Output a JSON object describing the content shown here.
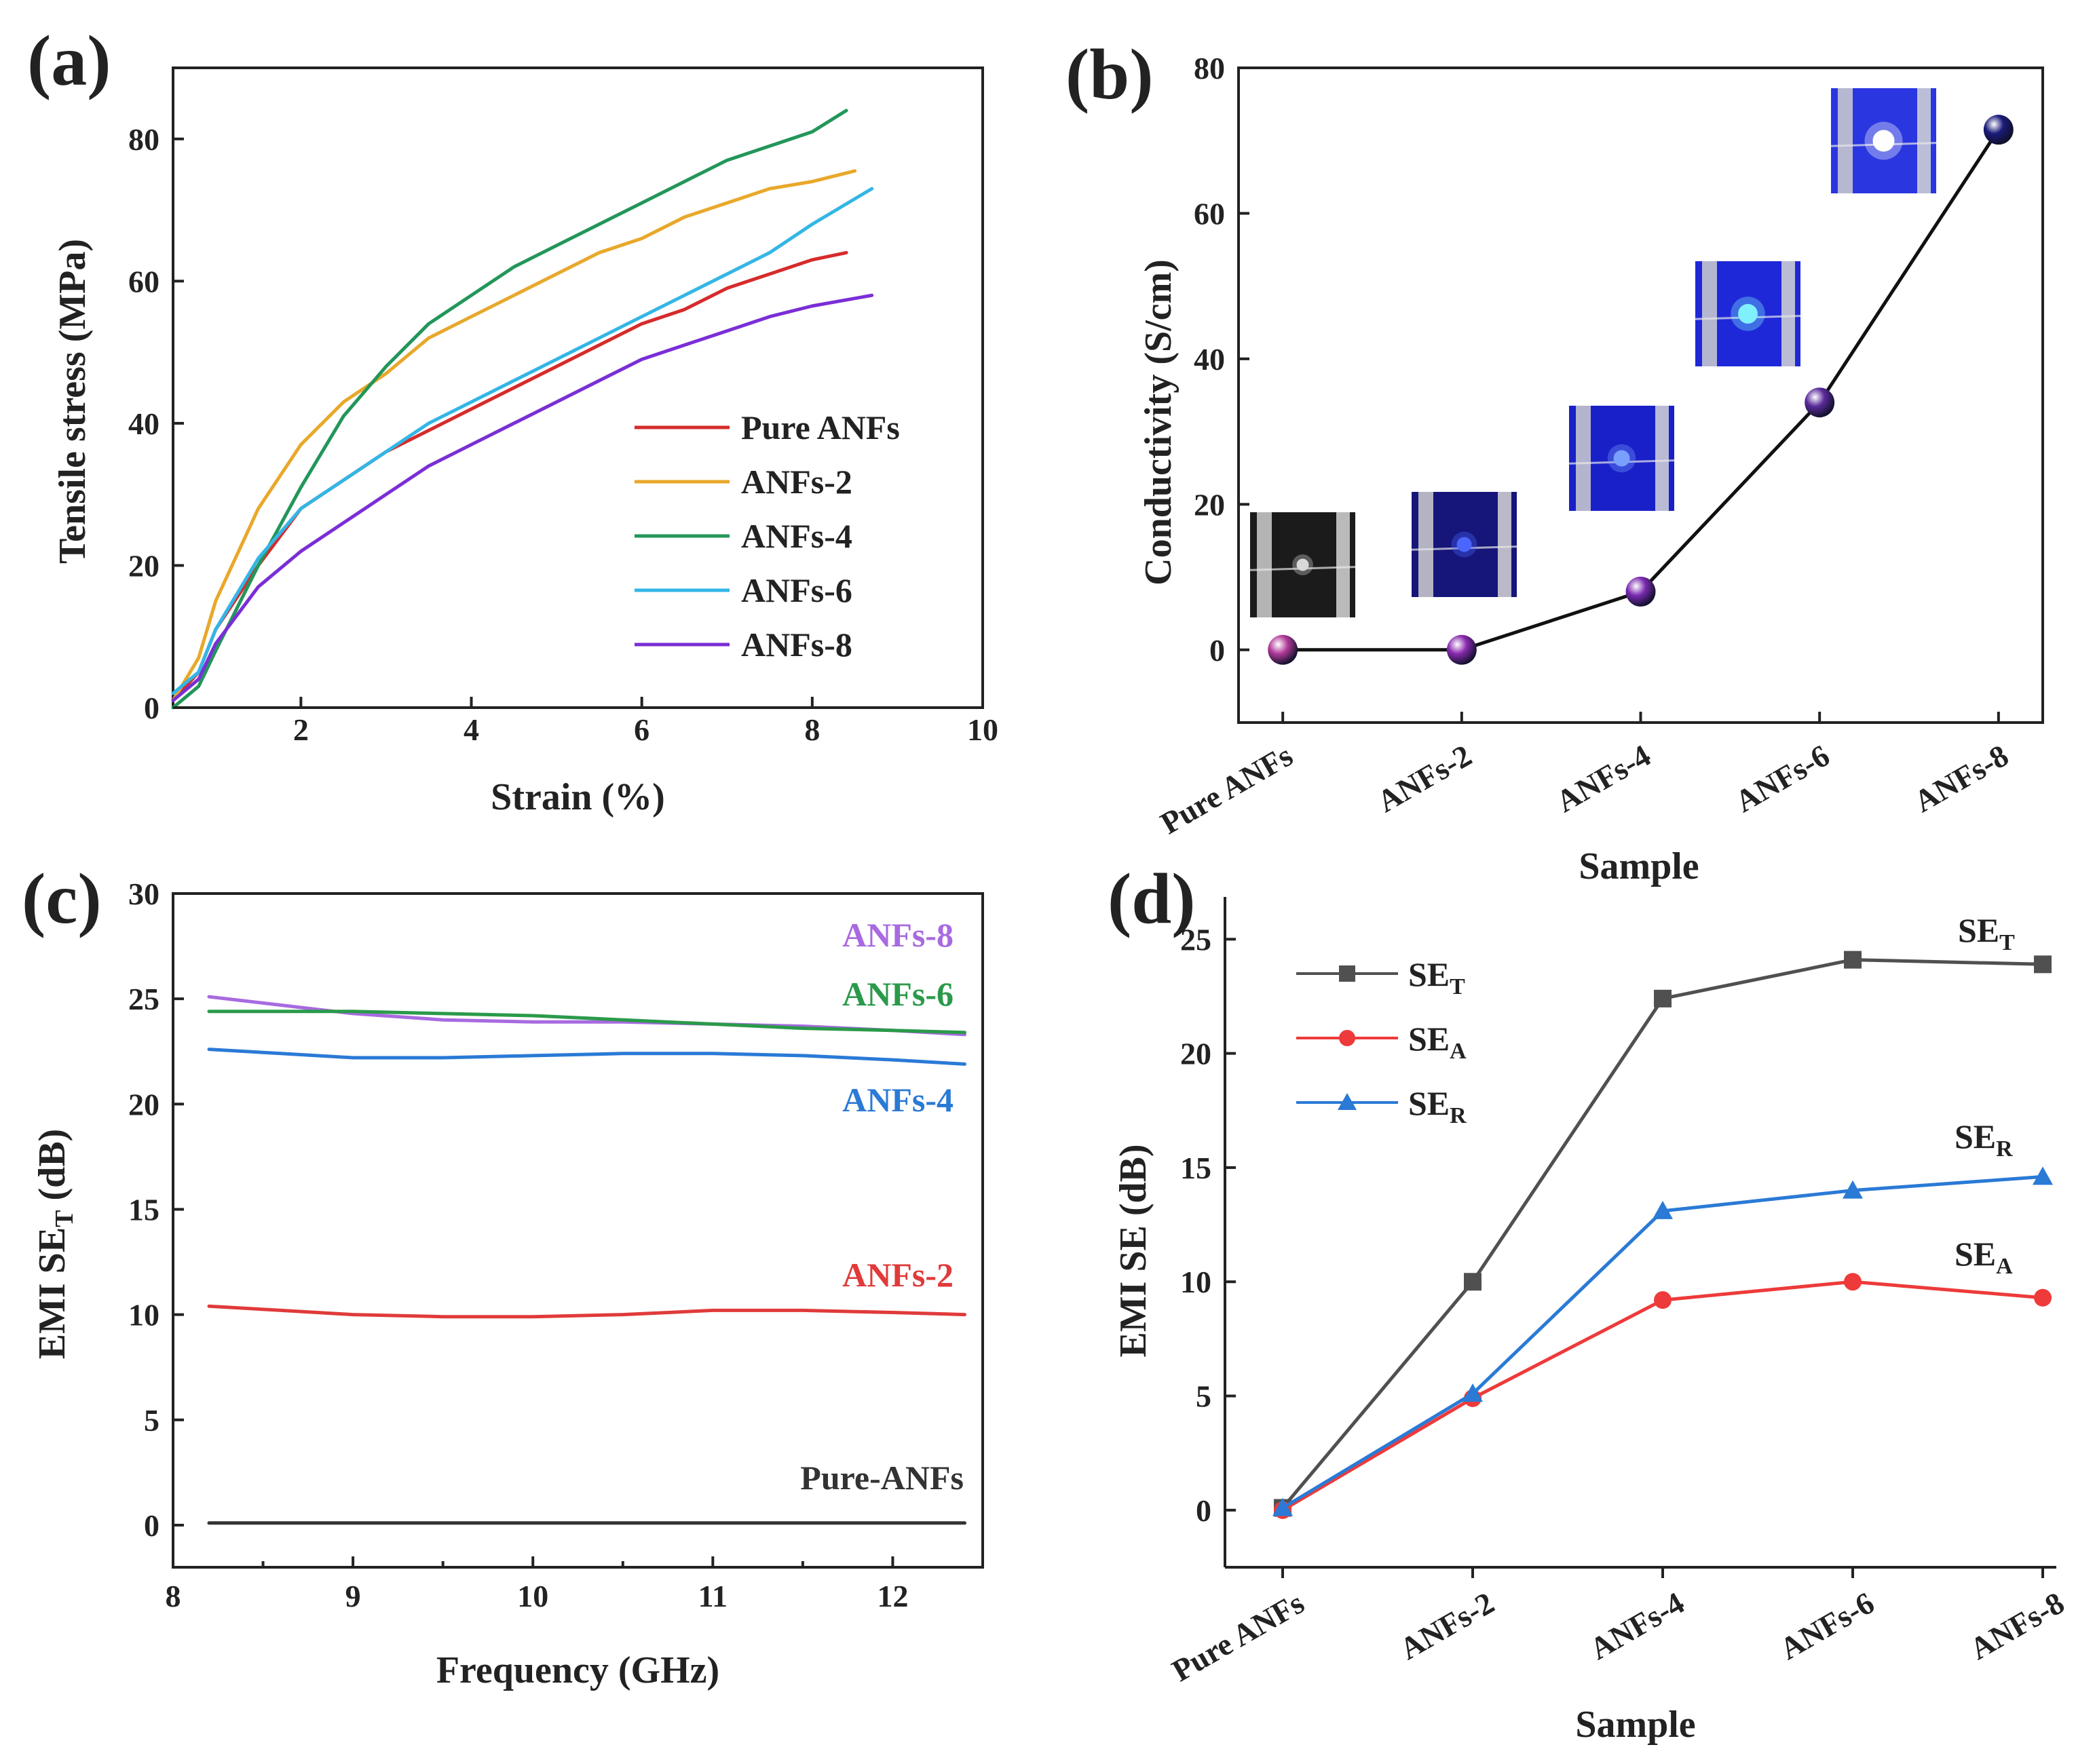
{
  "chart_data": [
    {
      "panel": "(a)",
      "type": "line",
      "xlabel": "Strain (%)",
      "ylabel": "Tensile stress (MPa)",
      "xlim": [
        0.5,
        10
      ],
      "ylim": [
        0,
        90
      ],
      "xticks": [
        2,
        4,
        6,
        8,
        10
      ],
      "yticks": [
        0,
        20,
        40,
        60,
        80
      ],
      "legend_position": "center-right",
      "series": [
        {
          "name": "Pure ANFs",
          "color": "#d62b2b",
          "x": [
            0.5,
            0.8,
            1.0,
            1.5,
            2.0,
            2.5,
            3.0,
            3.5,
            4.0,
            4.5,
            5.0,
            5.5,
            6.0,
            6.5,
            7.0,
            7.5,
            8.0,
            8.4
          ],
          "y": [
            1,
            5,
            11,
            20,
            28,
            32,
            36,
            39,
            42,
            45,
            48,
            51,
            54,
            56,
            59,
            61,
            63,
            64
          ]
        },
        {
          "name": "ANFs-2",
          "color": "#e8a82a",
          "x": [
            0.5,
            0.8,
            1.0,
            1.5,
            2.0,
            2.5,
            3.0,
            3.5,
            4.0,
            4.5,
            5.0,
            5.5,
            6.0,
            6.5,
            7.0,
            7.5,
            8.0,
            8.5
          ],
          "y": [
            1,
            7,
            15,
            28,
            37,
            43,
            47,
            52,
            55,
            58,
            61,
            64,
            66,
            69,
            71,
            73,
            74,
            75.5
          ]
        },
        {
          "name": "ANFs-4",
          "color": "#23965a",
          "x": [
            0.5,
            0.8,
            1.0,
            1.5,
            2.0,
            2.5,
            3.0,
            3.5,
            4.0,
            4.5,
            5.0,
            5.5,
            6.0,
            6.5,
            7.0,
            7.5,
            8.0,
            8.4
          ],
          "y": [
            0,
            3,
            8,
            20,
            31,
            41,
            48,
            54,
            58,
            62,
            65,
            68,
            71,
            74,
            77,
            79,
            81,
            84
          ]
        },
        {
          "name": "ANFs-6",
          "color": "#33b6e6",
          "x": [
            0.5,
            0.8,
            1.0,
            1.5,
            2.0,
            2.5,
            3.0,
            3.5,
            4.0,
            4.5,
            5.0,
            5.5,
            6.0,
            6.5,
            7.0,
            7.5,
            8.0,
            8.7
          ],
          "y": [
            2,
            5,
            11,
            21,
            28,
            32,
            36,
            40,
            43,
            46,
            49,
            52,
            55,
            58,
            61,
            64,
            68,
            73
          ]
        },
        {
          "name": "ANFs-8",
          "color": "#7a2ed6",
          "x": [
            0.5,
            0.8,
            1.0,
            1.5,
            2.0,
            2.5,
            3.0,
            3.5,
            4.0,
            4.5,
            5.0,
            5.5,
            6.0,
            6.5,
            7.0,
            7.5,
            8.0,
            8.7
          ],
          "y": [
            1,
            4,
            9,
            17,
            22,
            26,
            30,
            34,
            37,
            40,
            43,
            46,
            49,
            51,
            53,
            55,
            56.5,
            58
          ]
        }
      ]
    },
    {
      "panel": "(b)",
      "type": "line",
      "xlabel": "Sample",
      "ylabel": "Conductivity (S/cm)",
      "ylim": [
        -10,
        80
      ],
      "yticks": [
        0,
        20,
        40,
        60,
        80
      ],
      "categories": [
        "Pure ANFs",
        "ANFs-2",
        "ANFs-4",
        "ANFs-6",
        "ANFs-8"
      ],
      "series": [
        {
          "name": "Conductivity",
          "values": [
            0,
            0,
            8,
            34,
            71.5
          ],
          "colors": [
            "#b23a9a",
            "#8a2ab0",
            "#7a2ab0",
            "#5a2a9a",
            "#1a1a7a"
          ]
        }
      ],
      "inset_photos": [
        "LED off (Pure ANFs)",
        "LED (ANFs-2)",
        "LED (ANFs-4)",
        "LED (ANFs-6)",
        "LED (ANFs-8)"
      ]
    },
    {
      "panel": "(c)",
      "type": "line",
      "xlabel": "Frequency (GHz)",
      "ylabel": "EMI SE",
      "ylabel_sub": "T",
      "ylabel_unit": "(dB)",
      "xlim": [
        8,
        12.5
      ],
      "ylim": [
        -2,
        30
      ],
      "xticks": [
        8,
        9,
        10,
        11,
        12
      ],
      "yticks": [
        0,
        5,
        10,
        15,
        20,
        25,
        30
      ],
      "series": [
        {
          "name": "ANFs-8",
          "color": "#a86ae0",
          "x": [
            8.2,
            8.6,
            9.0,
            9.5,
            10.0,
            10.5,
            11.0,
            11.5,
            12.0,
            12.4
          ],
          "y": [
            25.1,
            24.7,
            24.3,
            24.0,
            23.9,
            23.9,
            23.8,
            23.7,
            23.5,
            23.3
          ]
        },
        {
          "name": "ANFs-6",
          "color": "#2a9a4a",
          "x": [
            8.2,
            8.6,
            9.0,
            9.5,
            10.0,
            10.5,
            11.0,
            11.5,
            12.0,
            12.4
          ],
          "y": [
            24.4,
            24.4,
            24.4,
            24.3,
            24.2,
            24.0,
            23.8,
            23.6,
            23.5,
            23.4
          ]
        },
        {
          "name": "ANFs-4",
          "color": "#2a7ad6",
          "x": [
            8.2,
            8.6,
            9.0,
            9.5,
            10.0,
            10.5,
            11.0,
            11.5,
            12.0,
            12.4
          ],
          "y": [
            22.6,
            22.4,
            22.2,
            22.2,
            22.3,
            22.4,
            22.4,
            22.3,
            22.1,
            21.9
          ]
        },
        {
          "name": "ANFs-2",
          "color": "#e03a3a",
          "x": [
            8.2,
            8.6,
            9.0,
            9.5,
            10.0,
            10.5,
            11.0,
            11.5,
            12.0,
            12.4
          ],
          "y": [
            10.4,
            10.2,
            10.0,
            9.9,
            9.9,
            10.0,
            10.2,
            10.2,
            10.1,
            10.0
          ]
        },
        {
          "name": "Pure-ANFs",
          "color": "#333333",
          "x": [
            8.2,
            12.4
          ],
          "y": [
            0.1,
            0.1
          ]
        }
      ]
    },
    {
      "panel": "(d)",
      "type": "line",
      "xlabel": "Sample",
      "ylabel": "EMI SE (dB)",
      "ylim": [
        -2.5,
        27
      ],
      "yticks": [
        0,
        5,
        10,
        15,
        20,
        25
      ],
      "categories": [
        "Pure ANFs",
        "ANFs-2",
        "ANFs-4",
        "ANFs-6",
        "ANFs-8"
      ],
      "legend_position": "top-left",
      "series": [
        {
          "name": "SE",
          "sub": "T",
          "marker": "square",
          "color": "#505050",
          "values": [
            0.1,
            10.0,
            22.4,
            24.1,
            23.9
          ]
        },
        {
          "name": "SE",
          "sub": "A",
          "marker": "circle",
          "color": "#ee3a3a",
          "values": [
            0,
            4.9,
            9.2,
            10.0,
            9.3
          ]
        },
        {
          "name": "SE",
          "sub": "R",
          "marker": "triangle",
          "color": "#2a7ad6",
          "values": [
            0.1,
            5.1,
            13.1,
            14.0,
            14.6
          ]
        }
      ]
    }
  ]
}
